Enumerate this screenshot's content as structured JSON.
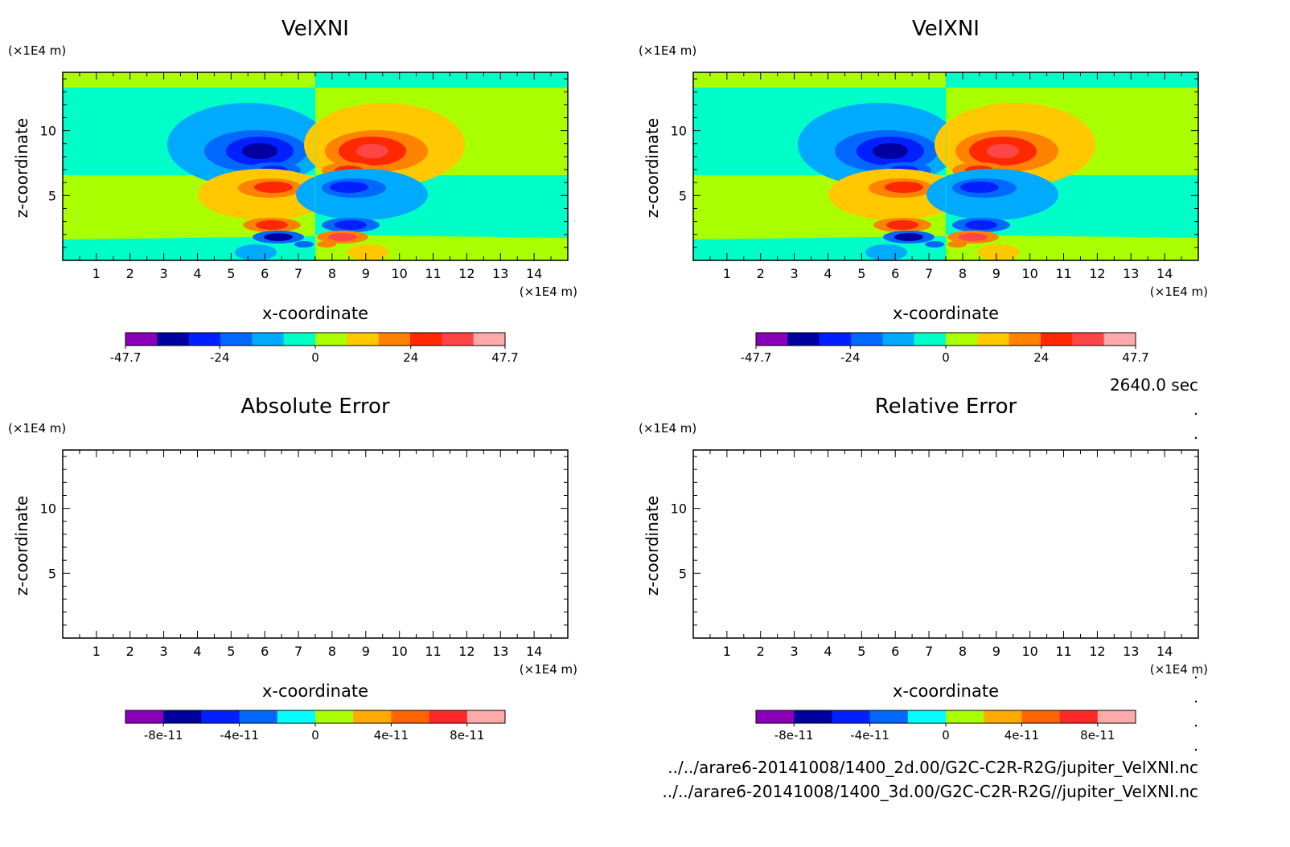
{
  "chart_data": [
    {
      "type": "heatmap",
      "title": "VelXNI",
      "xlabel": "x-coordinate",
      "ylabel": "z-coordinate",
      "x_unit": "(×1E4 m)",
      "y_unit": "(×1E4 m)",
      "xlim": [
        0,
        15
      ],
      "ylim": [
        0,
        14.5
      ],
      "x_ticks": [
        1,
        2,
        3,
        4,
        5,
        6,
        7,
        8,
        9,
        10,
        11,
        12,
        13,
        14
      ],
      "y_ticks": [
        5,
        10
      ],
      "colorbar": {
        "range": [
          -47.7,
          47.7
        ],
        "tick_values": [
          -47.7,
          -24,
          0,
          24,
          47.7
        ],
        "tick_labels": [
          "-47.7",
          "-24",
          "0",
          "24",
          "47.7"
        ],
        "colors": [
          "#8a00b8",
          "#0000a0",
          "#0020ff",
          "#0068ff",
          "#00aaff",
          "#00ffc8",
          "#aaff00",
          "#ffc800",
          "#ff8200",
          "#ff2800",
          "#ff4646",
          "#ffaaaa"
        ]
      }
    },
    {
      "type": "heatmap",
      "title": "VelXNI",
      "xlabel": "x-coordinate",
      "ylabel": "z-coordinate",
      "x_unit": "(×1E4 m)",
      "y_unit": "(×1E4 m)",
      "xlim": [
        0,
        15
      ],
      "ylim": [
        0,
        14.5
      ],
      "x_ticks": [
        1,
        2,
        3,
        4,
        5,
        6,
        7,
        8,
        9,
        10,
        11,
        12,
        13,
        14
      ],
      "y_ticks": [
        5,
        10
      ],
      "colorbar": {
        "range": [
          -47.7,
          47.7
        ],
        "tick_values": [
          -47.7,
          -24,
          0,
          24,
          47.7
        ],
        "tick_labels": [
          "-47.7",
          "-24",
          "0",
          "24",
          "47.7"
        ],
        "colors": [
          "#8a00b8",
          "#0000a0",
          "#0020ff",
          "#0068ff",
          "#00aaff",
          "#00ffc8",
          "#aaff00",
          "#ffc800",
          "#ff8200",
          "#ff2800",
          "#ff4646",
          "#ffaaaa"
        ]
      }
    },
    {
      "type": "heatmap",
      "title": "Absolute Error",
      "xlabel": "x-coordinate",
      "ylabel": "z-coordinate",
      "x_unit": "(×1E4 m)",
      "y_unit": "(×1E4 m)",
      "xlim": [
        0,
        15
      ],
      "ylim": [
        0,
        14.5
      ],
      "x_ticks": [
        1,
        2,
        3,
        4,
        5,
        6,
        7,
        8,
        9,
        10,
        11,
        12,
        13,
        14
      ],
      "y_ticks": [
        5,
        10
      ],
      "colorbar": {
        "range": [
          -1e-10,
          1e-10
        ],
        "tick_values": [
          -8e-11,
          -4e-11,
          0,
          4e-11,
          8e-11
        ],
        "tick_labels": [
          "-8e-11",
          "-4e-11",
          "0",
          "4e-11",
          "8e-11"
        ],
        "colors": [
          "#8a00b8",
          "#0000a0",
          "#0020ff",
          "#0068ff",
          "#00ffff",
          "#aaff00",
          "#ffaa00",
          "#ff6400",
          "#ff2828",
          "#ffaaaa"
        ]
      }
    },
    {
      "type": "heatmap",
      "title": "Relative Error",
      "xlabel": "x-coordinate",
      "ylabel": "z-coordinate",
      "x_unit": "(×1E4 m)",
      "y_unit": "(×1E4 m)",
      "xlim": [
        0,
        15
      ],
      "ylim": [
        0,
        14.5
      ],
      "x_ticks": [
        1,
        2,
        3,
        4,
        5,
        6,
        7,
        8,
        9,
        10,
        11,
        12,
        13,
        14
      ],
      "y_ticks": [
        5,
        10
      ],
      "colorbar": {
        "range": [
          -1e-10,
          1e-10
        ],
        "tick_values": [
          -8e-11,
          -4e-11,
          0,
          4e-11,
          8e-11
        ],
        "tick_labels": [
          "-8e-11",
          "-4e-11",
          "0",
          "4e-11",
          "8e-11"
        ],
        "colors": [
          "#8a00b8",
          "#0000a0",
          "#0020ff",
          "#0068ff",
          "#00ffff",
          "#aaff00",
          "#ffaa00",
          "#ff6400",
          "#ff2828",
          "#ffaaaa"
        ]
      }
    }
  ],
  "time_label": "2640.0 sec",
  "file_paths": [
    "../../arare6-20141008/1400_2d.00/G2C-C2R-R2G/jupiter_VelXNI.nc",
    "../../arare6-20141008/1400_3d.00/G2C-C2R-R2G//jupiter_VelXNI.nc"
  ]
}
